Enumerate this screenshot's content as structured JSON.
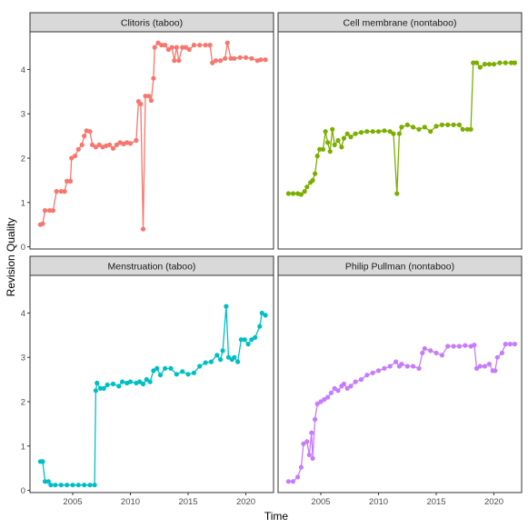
{
  "chart_data": {
    "type": "line",
    "layout": "facet-grid-2x2",
    "xlabel": "Time",
    "ylabel": "Revision Quality",
    "x_ticks": [
      2005,
      2010,
      2015,
      2020
    ],
    "y_ticks": [
      0,
      1,
      2,
      3,
      4
    ],
    "xlim": [
      2001.3,
      2022.4
    ],
    "ylim": [
      -0.05,
      4.85
    ],
    "panels": [
      {
        "title": "Clitoris (taboo)",
        "color": "#F8766D",
        "points": [
          [
            2002.2,
            0.5
          ],
          [
            2002.4,
            0.52
          ],
          [
            2002.6,
            0.82
          ],
          [
            2003.0,
            0.82
          ],
          [
            2003.3,
            0.82
          ],
          [
            2003.6,
            1.25
          ],
          [
            2004.0,
            1.25
          ],
          [
            2004.3,
            1.25
          ],
          [
            2004.5,
            1.48
          ],
          [
            2004.8,
            1.48
          ],
          [
            2004.9,
            2.0
          ],
          [
            2005.2,
            2.05
          ],
          [
            2005.5,
            2.2
          ],
          [
            2005.8,
            2.3
          ],
          [
            2006.0,
            2.5
          ],
          [
            2006.2,
            2.62
          ],
          [
            2006.5,
            2.6
          ],
          [
            2006.7,
            2.3
          ],
          [
            2007.0,
            2.25
          ],
          [
            2007.3,
            2.3
          ],
          [
            2007.6,
            2.25
          ],
          [
            2007.9,
            2.28
          ],
          [
            2008.2,
            2.3
          ],
          [
            2008.5,
            2.22
          ],
          [
            2008.8,
            2.3
          ],
          [
            2009.1,
            2.35
          ],
          [
            2009.4,
            2.32
          ],
          [
            2009.7,
            2.35
          ],
          [
            2010.0,
            2.33
          ],
          [
            2010.5,
            2.4
          ],
          [
            2010.7,
            3.28
          ],
          [
            2010.9,
            3.22
          ],
          [
            2011.1,
            0.4
          ],
          [
            2011.3,
            3.4
          ],
          [
            2011.6,
            3.4
          ],
          [
            2011.8,
            3.3
          ],
          [
            2012.0,
            3.8
          ],
          [
            2012.1,
            4.5
          ],
          [
            2012.4,
            4.6
          ],
          [
            2012.7,
            4.55
          ],
          [
            2013.0,
            4.55
          ],
          [
            2013.3,
            4.45
          ],
          [
            2013.6,
            4.5
          ],
          [
            2013.8,
            4.2
          ],
          [
            2014.0,
            4.5
          ],
          [
            2014.2,
            4.2
          ],
          [
            2014.5,
            4.5
          ],
          [
            2014.8,
            4.5
          ],
          [
            2015.1,
            4.45
          ],
          [
            2015.5,
            4.55
          ],
          [
            2016.0,
            4.55
          ],
          [
            2016.5,
            4.55
          ],
          [
            2016.9,
            4.55
          ],
          [
            2017.1,
            4.15
          ],
          [
            2017.4,
            4.2
          ],
          [
            2017.8,
            4.2
          ],
          [
            2018.2,
            4.25
          ],
          [
            2018.4,
            4.6
          ],
          [
            2018.7,
            4.25
          ],
          [
            2019.0,
            4.25
          ],
          [
            2019.5,
            4.27
          ],
          [
            2020.0,
            4.27
          ],
          [
            2020.5,
            4.25
          ],
          [
            2021.0,
            4.2
          ],
          [
            2021.3,
            4.22
          ],
          [
            2021.7,
            4.22
          ]
        ]
      },
      {
        "title": "Cell membrane (nontaboo)",
        "color": "#7CAE00",
        "points": [
          [
            2002.2,
            1.2
          ],
          [
            2002.6,
            1.2
          ],
          [
            2003.0,
            1.2
          ],
          [
            2003.3,
            1.18
          ],
          [
            2003.6,
            1.25
          ],
          [
            2003.8,
            1.35
          ],
          [
            2004.1,
            1.45
          ],
          [
            2004.3,
            1.5
          ],
          [
            2004.5,
            1.65
          ],
          [
            2004.7,
            2.05
          ],
          [
            2004.9,
            2.2
          ],
          [
            2005.2,
            2.2
          ],
          [
            2005.4,
            2.6
          ],
          [
            2005.6,
            2.35
          ],
          [
            2005.8,
            2.15
          ],
          [
            2006.0,
            2.65
          ],
          [
            2006.2,
            2.3
          ],
          [
            2006.5,
            2.4
          ],
          [
            2006.8,
            2.25
          ],
          [
            2007.0,
            2.45
          ],
          [
            2007.3,
            2.55
          ],
          [
            2007.6,
            2.48
          ],
          [
            2008.0,
            2.55
          ],
          [
            2008.5,
            2.58
          ],
          [
            2009.0,
            2.6
          ],
          [
            2009.5,
            2.6
          ],
          [
            2010.0,
            2.6
          ],
          [
            2010.5,
            2.62
          ],
          [
            2011.0,
            2.6
          ],
          [
            2011.3,
            2.55
          ],
          [
            2011.6,
            1.2
          ],
          [
            2011.8,
            2.55
          ],
          [
            2012.0,
            2.7
          ],
          [
            2012.5,
            2.75
          ],
          [
            2013.0,
            2.7
          ],
          [
            2013.5,
            2.65
          ],
          [
            2014.0,
            2.7
          ],
          [
            2014.5,
            2.6
          ],
          [
            2015.0,
            2.72
          ],
          [
            2015.5,
            2.75
          ],
          [
            2016.0,
            2.75
          ],
          [
            2016.5,
            2.75
          ],
          [
            2017.0,
            2.75
          ],
          [
            2017.3,
            2.65
          ],
          [
            2017.7,
            2.65
          ],
          [
            2018.0,
            2.65
          ],
          [
            2018.2,
            4.15
          ],
          [
            2018.5,
            4.15
          ],
          [
            2018.8,
            4.05
          ],
          [
            2019.2,
            4.12
          ],
          [
            2019.6,
            4.12
          ],
          [
            2020.0,
            4.12
          ],
          [
            2020.5,
            4.15
          ],
          [
            2021.0,
            4.15
          ],
          [
            2021.5,
            4.15
          ],
          [
            2021.8,
            4.15
          ]
        ]
      },
      {
        "title": "Menstruation (taboo)",
        "color": "#00BFC4",
        "points": [
          [
            2002.2,
            0.65
          ],
          [
            2002.4,
            0.65
          ],
          [
            2002.6,
            0.2
          ],
          [
            2002.9,
            0.2
          ],
          [
            2003.1,
            0.12
          ],
          [
            2003.5,
            0.12
          ],
          [
            2004.0,
            0.12
          ],
          [
            2004.5,
            0.12
          ],
          [
            2005.0,
            0.12
          ],
          [
            2005.5,
            0.12
          ],
          [
            2006.0,
            0.12
          ],
          [
            2006.5,
            0.12
          ],
          [
            2006.9,
            0.12
          ],
          [
            2007.0,
            2.25
          ],
          [
            2007.1,
            2.42
          ],
          [
            2007.4,
            2.3
          ],
          [
            2007.7,
            2.3
          ],
          [
            2008.0,
            2.38
          ],
          [
            2008.5,
            2.4
          ],
          [
            2009.0,
            2.35
          ],
          [
            2009.3,
            2.45
          ],
          [
            2009.7,
            2.42
          ],
          [
            2010.0,
            2.45
          ],
          [
            2010.5,
            2.42
          ],
          [
            2010.8,
            2.45
          ],
          [
            2011.1,
            2.4
          ],
          [
            2011.4,
            2.5
          ],
          [
            2011.7,
            2.45
          ],
          [
            2012.0,
            2.7
          ],
          [
            2012.3,
            2.75
          ],
          [
            2012.6,
            2.6
          ],
          [
            2013.0,
            2.75
          ],
          [
            2013.5,
            2.75
          ],
          [
            2014.0,
            2.62
          ],
          [
            2014.5,
            2.68
          ],
          [
            2015.0,
            2.62
          ],
          [
            2015.5,
            2.65
          ],
          [
            2016.0,
            2.8
          ],
          [
            2016.5,
            2.88
          ],
          [
            2017.0,
            2.9
          ],
          [
            2017.5,
            3.05
          ],
          [
            2017.8,
            2.95
          ],
          [
            2018.0,
            3.15
          ],
          [
            2018.3,
            4.15
          ],
          [
            2018.5,
            3.0
          ],
          [
            2018.8,
            2.95
          ],
          [
            2019.0,
            3.0
          ],
          [
            2019.3,
            2.9
          ],
          [
            2019.6,
            3.4
          ],
          [
            2019.9,
            3.4
          ],
          [
            2020.2,
            3.3
          ],
          [
            2020.5,
            3.4
          ],
          [
            2020.8,
            3.45
          ],
          [
            2021.2,
            3.7
          ],
          [
            2021.4,
            4.0
          ],
          [
            2021.7,
            3.95
          ]
        ]
      },
      {
        "title": "Philip Pullman (nontaboo)",
        "color": "#C77CFF",
        "points": [
          [
            2002.2,
            0.2
          ],
          [
            2002.6,
            0.2
          ],
          [
            2003.0,
            0.3
          ],
          [
            2003.3,
            0.52
          ],
          [
            2003.5,
            1.05
          ],
          [
            2003.8,
            1.1
          ],
          [
            2004.0,
            0.8
          ],
          [
            2004.2,
            1.3
          ],
          [
            2004.3,
            0.72
          ],
          [
            2004.5,
            1.6
          ],
          [
            2004.7,
            1.95
          ],
          [
            2005.0,
            2.0
          ],
          [
            2005.3,
            2.05
          ],
          [
            2005.6,
            2.1
          ],
          [
            2005.9,
            2.2
          ],
          [
            2006.2,
            2.3
          ],
          [
            2006.5,
            2.25
          ],
          [
            2006.8,
            2.35
          ],
          [
            2007.0,
            2.4
          ],
          [
            2007.3,
            2.3
          ],
          [
            2007.6,
            2.35
          ],
          [
            2008.0,
            2.45
          ],
          [
            2008.5,
            2.5
          ],
          [
            2009.0,
            2.6
          ],
          [
            2009.5,
            2.65
          ],
          [
            2010.0,
            2.7
          ],
          [
            2010.5,
            2.75
          ],
          [
            2011.0,
            2.8
          ],
          [
            2011.5,
            2.9
          ],
          [
            2011.8,
            2.8
          ],
          [
            2012.0,
            2.85
          ],
          [
            2012.5,
            2.8
          ],
          [
            2013.0,
            2.8
          ],
          [
            2013.5,
            2.75
          ],
          [
            2013.8,
            3.1
          ],
          [
            2014.0,
            3.2
          ],
          [
            2014.5,
            3.15
          ],
          [
            2015.0,
            3.1
          ],
          [
            2015.5,
            3.05
          ],
          [
            2016.0,
            3.25
          ],
          [
            2016.5,
            3.25
          ],
          [
            2017.0,
            3.25
          ],
          [
            2017.5,
            3.27
          ],
          [
            2018.0,
            3.25
          ],
          [
            2018.3,
            3.28
          ],
          [
            2018.5,
            2.75
          ],
          [
            2018.8,
            2.8
          ],
          [
            2019.2,
            2.8
          ],
          [
            2019.6,
            2.85
          ],
          [
            2019.9,
            2.7
          ],
          [
            2020.1,
            2.7
          ],
          [
            2020.3,
            3.0
          ],
          [
            2020.7,
            3.1
          ],
          [
            2021.0,
            3.3
          ],
          [
            2021.4,
            3.3
          ],
          [
            2021.8,
            3.3
          ]
        ]
      }
    ]
  }
}
